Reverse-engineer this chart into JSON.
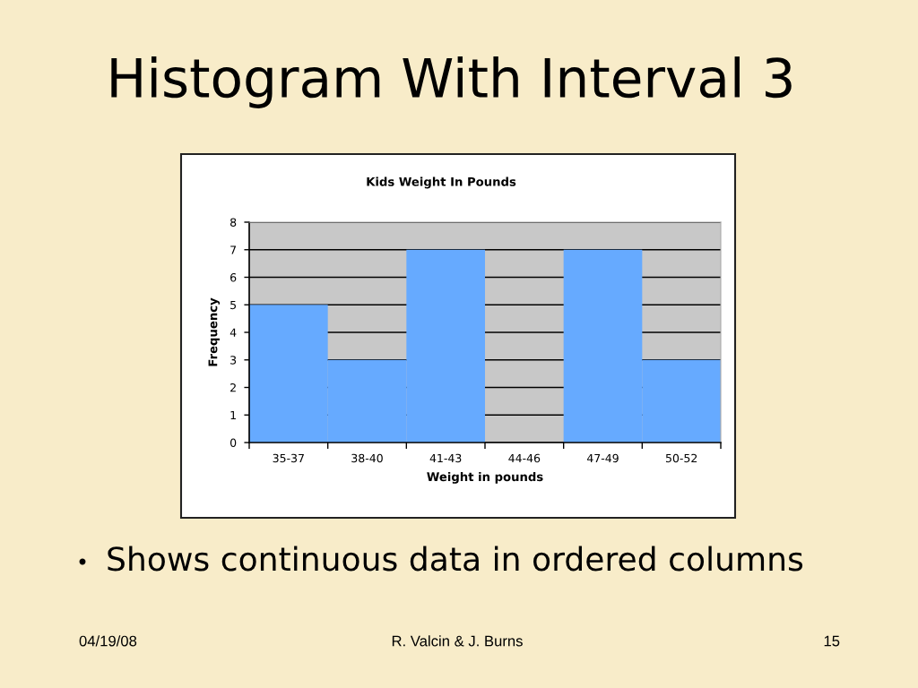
{
  "chart_data": {
    "type": "bar",
    "title": "Histogram With Interval 3",
    "subtitle": "Kids Weight In Pounds",
    "xlabel": "Weight in pounds",
    "ylabel": "Frequency",
    "categories": [
      "35-37",
      "38-40",
      "41-43",
      "44-46",
      "47-49",
      "50-52"
    ],
    "values": [
      5,
      3,
      7,
      0,
      7,
      3
    ],
    "color": "#66aaff",
    "ylim": [
      0,
      8
    ],
    "yticks": [
      0,
      1,
      2,
      3,
      4,
      5,
      6,
      7,
      8
    ],
    "grid": "y",
    "legend": false,
    "annotations": [
      "Shows continuous data in ordered columns",
      "04/19/08",
      "R. Valcin & J. Burns",
      "15"
    ]
  }
}
